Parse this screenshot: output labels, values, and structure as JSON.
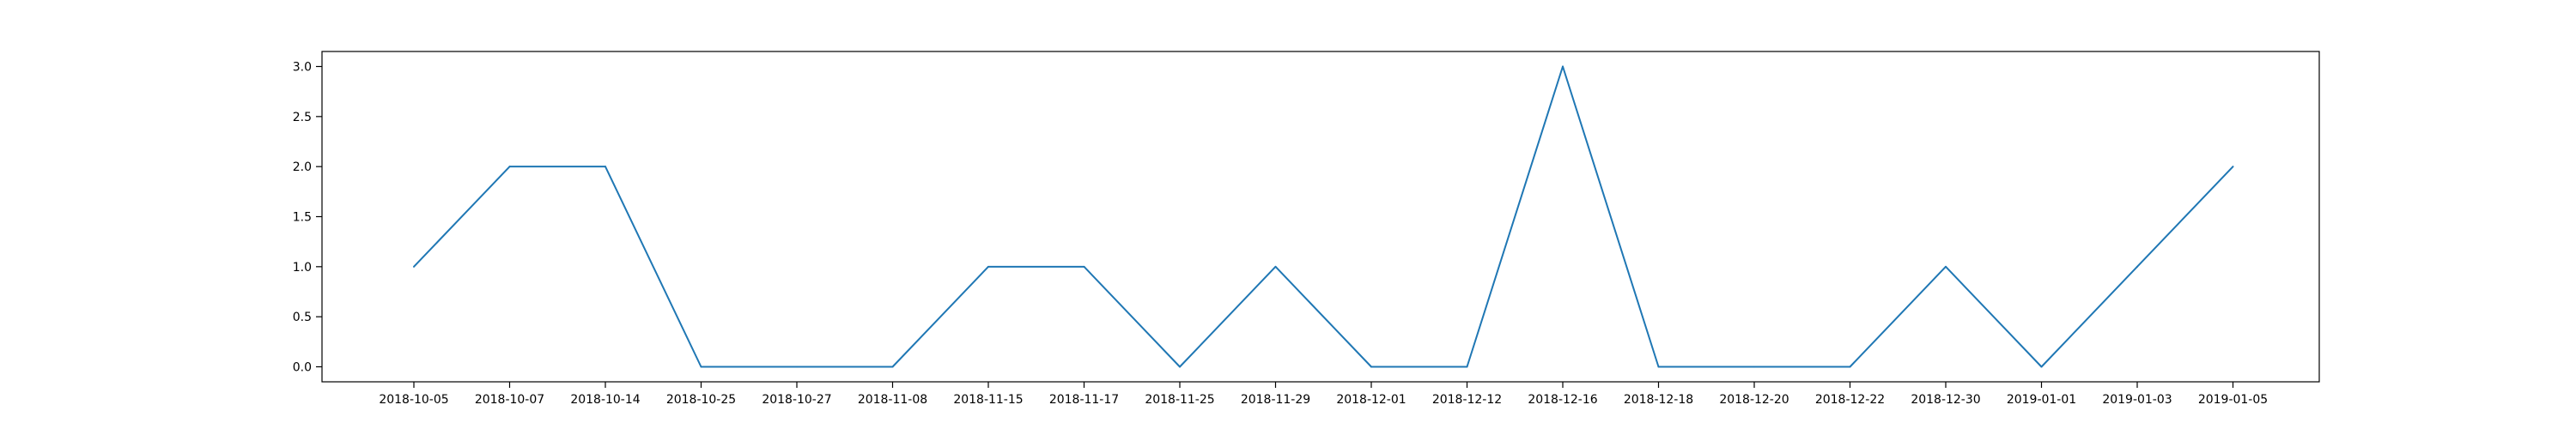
{
  "chart_data": {
    "type": "line",
    "title": "",
    "xlabel": "",
    "ylabel": "",
    "grid": false,
    "categories": [
      "2018-10-05",
      "2018-10-07",
      "2018-10-14",
      "2018-10-25",
      "2018-10-27",
      "2018-11-08",
      "2018-11-15",
      "2018-11-17",
      "2018-11-25",
      "2018-11-29",
      "2018-12-01",
      "2018-12-12",
      "2018-12-16",
      "2018-12-18",
      "2018-12-20",
      "2018-12-22",
      "2018-12-30",
      "2019-01-01",
      "2019-01-03",
      "2019-01-05"
    ],
    "series": [
      {
        "color": "#1f77b4",
        "values": [
          1,
          2,
          2,
          0,
          0,
          0,
          1,
          1,
          0,
          1,
          0,
          0,
          3,
          0,
          0,
          0,
          1,
          0,
          1,
          2
        ]
      }
    ],
    "ylim": [
      -0.15,
      3.15
    ],
    "yticks": [
      "0.0",
      "0.5",
      "1.0",
      "1.5",
      "2.0",
      "2.5",
      "3.0"
    ]
  }
}
